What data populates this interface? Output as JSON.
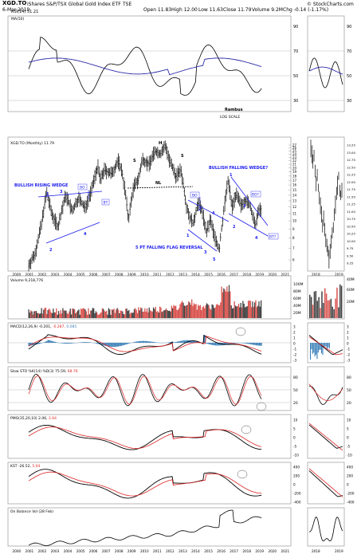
{
  "header": {
    "symbol": "XGD.TO",
    "name": "iShares S&P/TSX Global Gold Index ETF",
    "exchange": "TSE",
    "date": "6-Mar-2019",
    "open": "Open 11.83",
    "high": "High 12.00",
    "low": "Low 11.63",
    "close": "Close 11.79",
    "volume": "Volume 9.2M",
    "change": "Chg -0.14 (-1.17%)",
    "copyright": "© StockCharts.com"
  },
  "rsi_panel": {
    "legend_main": "RSI(14) 51.21",
    "legend_sub": "MA(50)",
    "ticks": [
      "90",
      "70",
      "50",
      "30"
    ],
    "note1": "Rambus",
    "note2": "LOG SCALE"
  },
  "price_panel": {
    "legend": "XGD.TO (Monthly) 11.79",
    "yticks": [
      "27",
      "26",
      "25",
      "24",
      "23",
      "22",
      "21",
      "20",
      "19",
      "18",
      "17",
      "16",
      "15",
      "14",
      "13",
      "12",
      "11",
      "10",
      "9",
      "8",
      "7",
      "6"
    ],
    "annotations": {
      "rising_wedge": "BULLISH RISING WEDGE",
      "falling_wedge": "BULLISH FALLING WEDGE?",
      "flag": "5 PT FALLING FLAG REVERSAL",
      "neckline": "NL",
      "left_shoulder": "S",
      "head": "H",
      "right_shoulder": "S",
      "bo1": "BO",
      "bt1": "BT",
      "bo2": "BO",
      "bo3": "BO?",
      "bt2": "BT?"
    },
    "wedge_points": [
      "1",
      "2",
      "3",
      "4",
      "1",
      "2",
      "3",
      "4",
      "5",
      "1",
      "2",
      "3",
      "4"
    ]
  },
  "x_axis": {
    "years": [
      "2000",
      "2001",
      "2002",
      "2003",
      "2004",
      "2005",
      "2006",
      "2007",
      "2008",
      "2009",
      "2010",
      "2011",
      "2012",
      "2013",
      "2014",
      "2015",
      "2016",
      "2017",
      "2018",
      "2019",
      "2020",
      "2021"
    ],
    "side_years": [
      "2018",
      "2019"
    ]
  },
  "volume_panel": {
    "legend": "Volume 9,218,776",
    "ticks": [
      "100M",
      "80M",
      "60M",
      "40M",
      "20M"
    ]
  },
  "macd_panel": {
    "legend": "MACD(12,26,9) -0.201,",
    "signal": "-0.287,",
    "hist": "0.085",
    "ticks": [
      "3",
      "2",
      "1",
      "0",
      "-1",
      "-2",
      "-3"
    ]
  },
  "sto_panel": {
    "legend": "Slow STO %K(14) %D(3) 75.59,",
    "d_value": "68.76",
    "ticks": [
      "80",
      "50",
      "20"
    ]
  },
  "pmo_panel": {
    "legend": "PMO(35,20,10) 2.06,",
    "signal": "2.64",
    "ticks": [
      "10",
      "5",
      "0",
      "-5",
      "-10"
    ]
  },
  "kst_panel": {
    "legend": "KST -26.52,",
    "signal": "5.04",
    "ticks": [
      "400",
      "200",
      "0",
      "-200",
      "-400"
    ]
  },
  "obv_panel": {
    "legend": "On Balance Vol (28 Feb)"
  },
  "colors": {
    "wedge_line": "#1a1aee",
    "annotation_text": "#1a1aee",
    "red_line": "#dd2222",
    "up_volume": "#d9534f",
    "down_volume": "#404040",
    "macd_hist": "#3a7fb8",
    "grid": "#d8d8d8"
  }
}
